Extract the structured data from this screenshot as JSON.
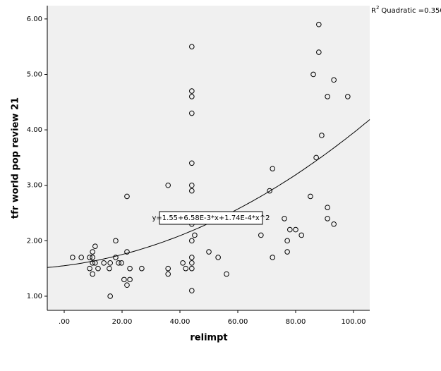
{
  "chart_data": {
    "type": "scatter",
    "x_label": "relimpt",
    "y_label": "tfr world pop review 21",
    "xlim": [
      -5.85,
      105.6
    ],
    "ylim": [
      0.745,
      6.24
    ],
    "xticks": [
      {
        "value": 0,
        "label": ".00"
      },
      {
        "value": 20,
        "label": "20.00"
      },
      {
        "value": 40,
        "label": "40.00"
      },
      {
        "value": 60,
        "label": "60.00"
      },
      {
        "value": 80,
        "label": "80.00"
      },
      {
        "value": 100,
        "label": "100.00"
      }
    ],
    "yticks": [
      {
        "value": 1,
        "label": "1.00"
      },
      {
        "value": 2,
        "label": "2.00"
      },
      {
        "value": 3,
        "label": "3.00"
      },
      {
        "value": 4,
        "label": "4.00"
      },
      {
        "value": 5,
        "label": "5.00"
      },
      {
        "value": 6,
        "label": "6.00"
      }
    ],
    "background": "#f0f0f0",
    "marker_color": "#000000",
    "line_color": "#000000",
    "x": [
      2.9,
      5.9,
      8.8,
      8.8,
      9.8,
      9.8,
      9.8,
      9.8,
      10.7,
      10.7,
      11.7,
      13.7,
      15.6,
      15.9,
      15.9,
      17.8,
      17.8,
      18.8,
      19.8,
      20.7,
      21.7,
      21.7,
      21.7,
      22.7,
      22.7,
      26.8,
      35.9,
      35.9,
      35.9,
      41.0,
      42.0,
      44.1,
      44.1,
      44.1,
      44.1,
      44.1,
      44.1,
      44.1,
      44.1,
      44.1,
      44.1,
      44.1,
      44.1,
      44.1,
      45.1,
      50.0,
      53.2,
      56.1,
      68.0,
      71.0,
      72.0,
      72.0,
      76.1,
      77.1,
      77.1,
      78.0,
      80.0,
      82.0,
      85.1,
      86.1,
      87.1,
      88.0,
      88.0,
      89.0,
      91.0,
      91.0,
      91.0,
      93.2,
      93.2,
      98.0
    ],
    "y": [
      1.7,
      1.7,
      1.7,
      1.5,
      1.8,
      1.7,
      1.6,
      1.4,
      1.6,
      1.9,
      1.5,
      1.6,
      1.5,
      1.0,
      1.6,
      2.0,
      1.7,
      1.6,
      1.6,
      1.3,
      1.8,
      1.2,
      2.8,
      1.3,
      1.5,
      1.5,
      1.5,
      1.4,
      3.0,
      1.6,
      1.5,
      5.5,
      4.7,
      4.6,
      4.3,
      3.4,
      3.0,
      2.9,
      2.0,
      1.7,
      1.6,
      1.5,
      1.1,
      2.3,
      2.1,
      1.8,
      1.7,
      1.4,
      2.1,
      2.9,
      3.3,
      1.7,
      2.4,
      2.0,
      1.8,
      2.2,
      2.2,
      2.1,
      2.8,
      5.0,
      3.5,
      5.9,
      5.4,
      3.9,
      4.6,
      2.6,
      2.4,
      4.9,
      2.3,
      4.6
    ],
    "fit": {
      "equation": "y=1.55+6.58E-3*x+1.74E-4*x^2",
      "intercept": 1.55,
      "linear": 0.00658,
      "quadratic": 0.000174,
      "r2_symbol": "R",
      "r2_sup": "2",
      "r2_text": "Quadratic =0.350"
    }
  }
}
